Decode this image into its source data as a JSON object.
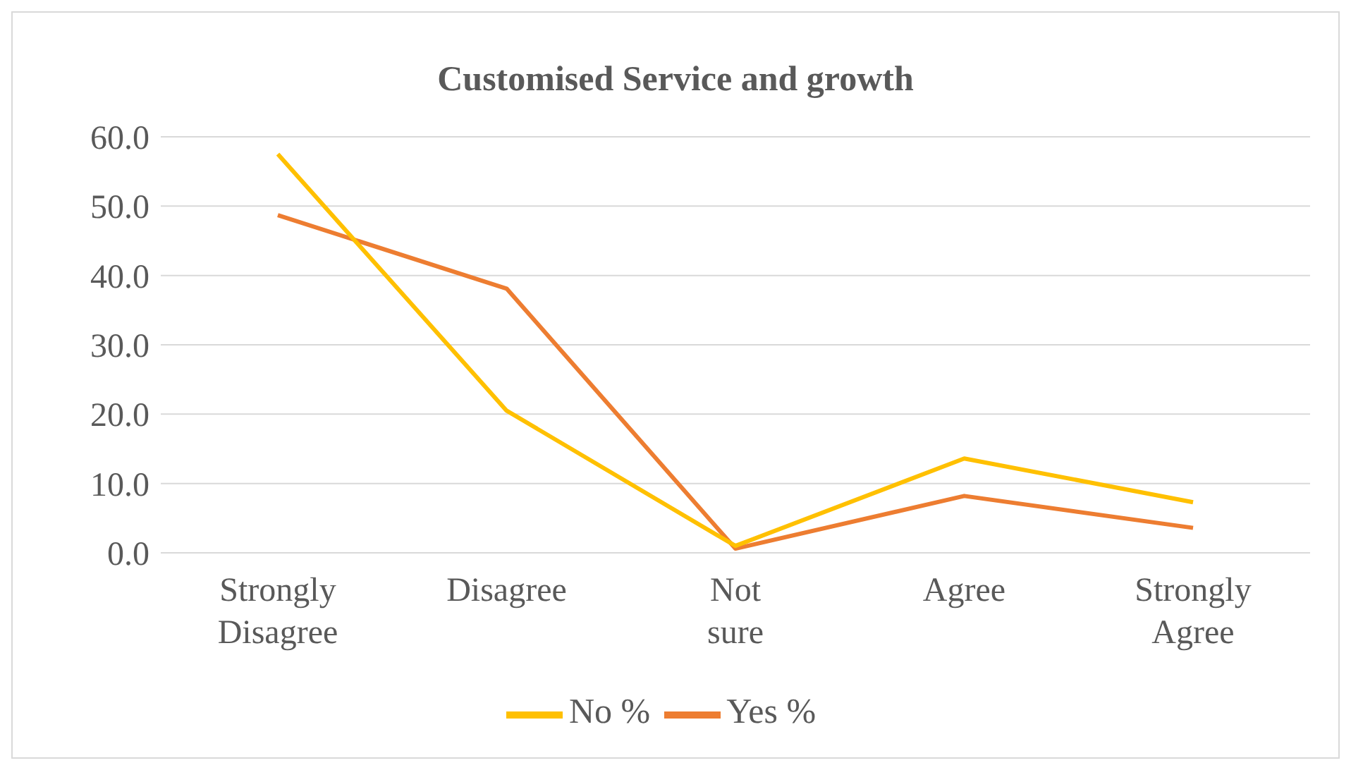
{
  "chart_data": {
    "type": "line",
    "title": "Customised Service and growth",
    "categories": [
      "Strongly Disagree",
      "Disagree",
      "Not sure",
      "Agree",
      "Strongly Agree"
    ],
    "series": [
      {
        "name": "Yes %",
        "color": "#ed7d31",
        "values": [
          48.7,
          38.1,
          0.6,
          8.2,
          3.6
        ]
      },
      {
        "name": "No %",
        "color": "#ffc000",
        "values": [
          57.5,
          20.5,
          1.0,
          13.6,
          7.3
        ]
      }
    ],
    "ylim": [
      0,
      60
    ],
    "yticks": [
      {
        "value": 0,
        "label": "0.0"
      },
      {
        "value": 10,
        "label": "10.0"
      },
      {
        "value": 20,
        "label": "20.0"
      },
      {
        "value": 30,
        "label": "30.0"
      },
      {
        "value": 40,
        "label": "40.0"
      },
      {
        "value": 50,
        "label": "50.0"
      },
      {
        "value": 60,
        "label": "60.0"
      }
    ],
    "grid": "y",
    "legend": "bottom",
    "marker": "none",
    "line_style": "solid"
  }
}
